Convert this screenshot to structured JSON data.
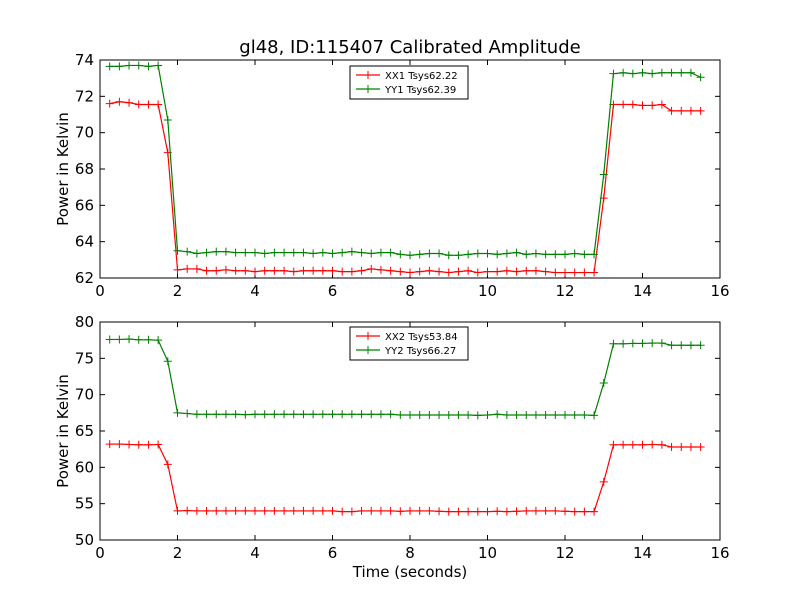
{
  "figure": {
    "title": "gl48, ID:115407 Calibrated Amplitude"
  },
  "chart_data": [
    {
      "type": "line",
      "title": "gl48, ID:115407 Calibrated Amplitude",
      "xlabel": "",
      "ylabel": "Power in Kelvin",
      "xlim": [
        0,
        16
      ],
      "ylim": [
        62,
        74
      ],
      "xticks": [
        0,
        2,
        4,
        6,
        8,
        10,
        12,
        14,
        16
      ],
      "yticks": [
        62,
        64,
        66,
        68,
        70,
        72,
        74
      ],
      "legend_position": "upper center",
      "x": [
        0.25,
        0.5,
        0.75,
        1.0,
        1.25,
        1.5,
        1.75,
        2.0,
        2.25,
        2.5,
        2.75,
        3.0,
        3.25,
        3.5,
        3.75,
        4.0,
        4.25,
        4.5,
        4.75,
        5.0,
        5.25,
        5.5,
        5.75,
        6.0,
        6.25,
        6.5,
        6.75,
        7.0,
        7.25,
        7.5,
        7.75,
        8.0,
        8.25,
        8.5,
        8.75,
        9.0,
        9.25,
        9.5,
        9.75,
        10.0,
        10.25,
        10.5,
        10.75,
        11.0,
        11.25,
        11.5,
        11.75,
        12.0,
        12.25,
        12.5,
        12.75,
        13.0,
        13.25,
        13.5,
        13.75,
        14.0,
        14.25,
        14.5,
        14.75,
        15.0,
        15.25,
        15.5
      ],
      "series": [
        {
          "name": "XX1 Tsys62.22",
          "color": "#ff0000",
          "values": [
            71.6,
            71.7,
            71.65,
            71.55,
            71.55,
            71.55,
            68.9,
            62.45,
            62.5,
            62.5,
            62.4,
            62.4,
            62.45,
            62.4,
            62.4,
            62.35,
            62.4,
            62.4,
            62.4,
            62.35,
            62.4,
            62.4,
            62.4,
            62.4,
            62.35,
            62.35,
            62.4,
            62.5,
            62.45,
            62.4,
            62.35,
            62.3,
            62.35,
            62.4,
            62.35,
            62.3,
            62.35,
            62.4,
            62.3,
            62.35,
            62.35,
            62.4,
            62.35,
            62.4,
            62.4,
            62.35,
            62.3,
            62.3,
            62.3,
            62.3,
            62.3,
            66.4,
            71.55,
            71.55,
            71.55,
            71.5,
            71.5,
            71.55,
            71.2,
            71.2,
            71.2,
            71.2
          ]
        },
        {
          "name": "YY1 Tsys62.39",
          "color": "#008000",
          "values": [
            73.65,
            73.65,
            73.7,
            73.7,
            73.65,
            73.7,
            70.7,
            63.5,
            63.45,
            63.35,
            63.4,
            63.45,
            63.45,
            63.4,
            63.4,
            63.4,
            63.35,
            63.4,
            63.4,
            63.4,
            63.4,
            63.35,
            63.4,
            63.35,
            63.4,
            63.45,
            63.4,
            63.35,
            63.4,
            63.4,
            63.3,
            63.25,
            63.3,
            63.35,
            63.35,
            63.25,
            63.25,
            63.3,
            63.35,
            63.35,
            63.3,
            63.35,
            63.4,
            63.3,
            63.35,
            63.3,
            63.3,
            63.3,
            63.35,
            63.3,
            63.3,
            67.7,
            73.25,
            73.3,
            73.25,
            73.3,
            73.25,
            73.3,
            73.3,
            73.3,
            73.3,
            73.05
          ]
        }
      ]
    },
    {
      "type": "line",
      "title": "",
      "xlabel": "Time (seconds)",
      "ylabel": "Power in Kelvin",
      "xlim": [
        0,
        16
      ],
      "ylim": [
        50,
        80
      ],
      "xticks": [
        0,
        2,
        4,
        6,
        8,
        10,
        12,
        14,
        16
      ],
      "yticks": [
        50,
        55,
        60,
        65,
        70,
        75,
        80
      ],
      "legend_position": "upper center",
      "x": [
        0.25,
        0.5,
        0.75,
        1.0,
        1.25,
        1.5,
        1.75,
        2.0,
        2.25,
        2.5,
        2.75,
        3.0,
        3.25,
        3.5,
        3.75,
        4.0,
        4.25,
        4.5,
        4.75,
        5.0,
        5.25,
        5.5,
        5.75,
        6.0,
        6.25,
        6.5,
        6.75,
        7.0,
        7.25,
        7.5,
        7.75,
        8.0,
        8.25,
        8.5,
        8.75,
        9.0,
        9.25,
        9.5,
        9.75,
        10.0,
        10.25,
        10.5,
        10.75,
        11.0,
        11.25,
        11.5,
        11.75,
        12.0,
        12.25,
        12.5,
        12.75,
        13.0,
        13.25,
        13.5,
        13.75,
        14.0,
        14.25,
        14.5,
        14.75,
        15.0,
        15.25,
        15.5
      ],
      "series": [
        {
          "name": "XX2 Tsys53.84",
          "color": "#ff0000",
          "values": [
            63.2,
            63.2,
            63.15,
            63.1,
            63.1,
            63.15,
            60.4,
            54.0,
            54.05,
            54.0,
            54.0,
            54.0,
            54.0,
            54.0,
            54.0,
            54.0,
            54.0,
            54.0,
            54.0,
            54.0,
            54.0,
            54.0,
            54.0,
            54.0,
            53.9,
            53.9,
            54.0,
            54.0,
            54.0,
            54.0,
            53.95,
            54.0,
            54.0,
            54.0,
            53.95,
            53.9,
            53.9,
            53.9,
            53.9,
            53.9,
            53.95,
            53.9,
            53.95,
            54.0,
            54.0,
            54.0,
            54.0,
            53.95,
            53.9,
            53.9,
            53.9,
            58.0,
            63.1,
            63.1,
            63.1,
            63.1,
            63.15,
            63.1,
            62.8,
            62.8,
            62.8,
            62.8
          ]
        },
        {
          "name": "YY2 Tsys66.27",
          "color": "#008000",
          "values": [
            77.6,
            77.6,
            77.65,
            77.55,
            77.55,
            77.5,
            74.6,
            67.5,
            67.4,
            67.3,
            67.3,
            67.3,
            67.3,
            67.3,
            67.25,
            67.3,
            67.3,
            67.3,
            67.3,
            67.3,
            67.3,
            67.3,
            67.3,
            67.3,
            67.3,
            67.3,
            67.3,
            67.3,
            67.3,
            67.3,
            67.2,
            67.2,
            67.2,
            67.2,
            67.2,
            67.2,
            67.2,
            67.2,
            67.15,
            67.2,
            67.3,
            67.2,
            67.2,
            67.2,
            67.2,
            67.2,
            67.2,
            67.2,
            67.2,
            67.2,
            67.15,
            71.6,
            77.0,
            77.0,
            77.05,
            77.05,
            77.1,
            77.1,
            76.8,
            76.8,
            76.8,
            76.8
          ]
        }
      ]
    }
  ]
}
